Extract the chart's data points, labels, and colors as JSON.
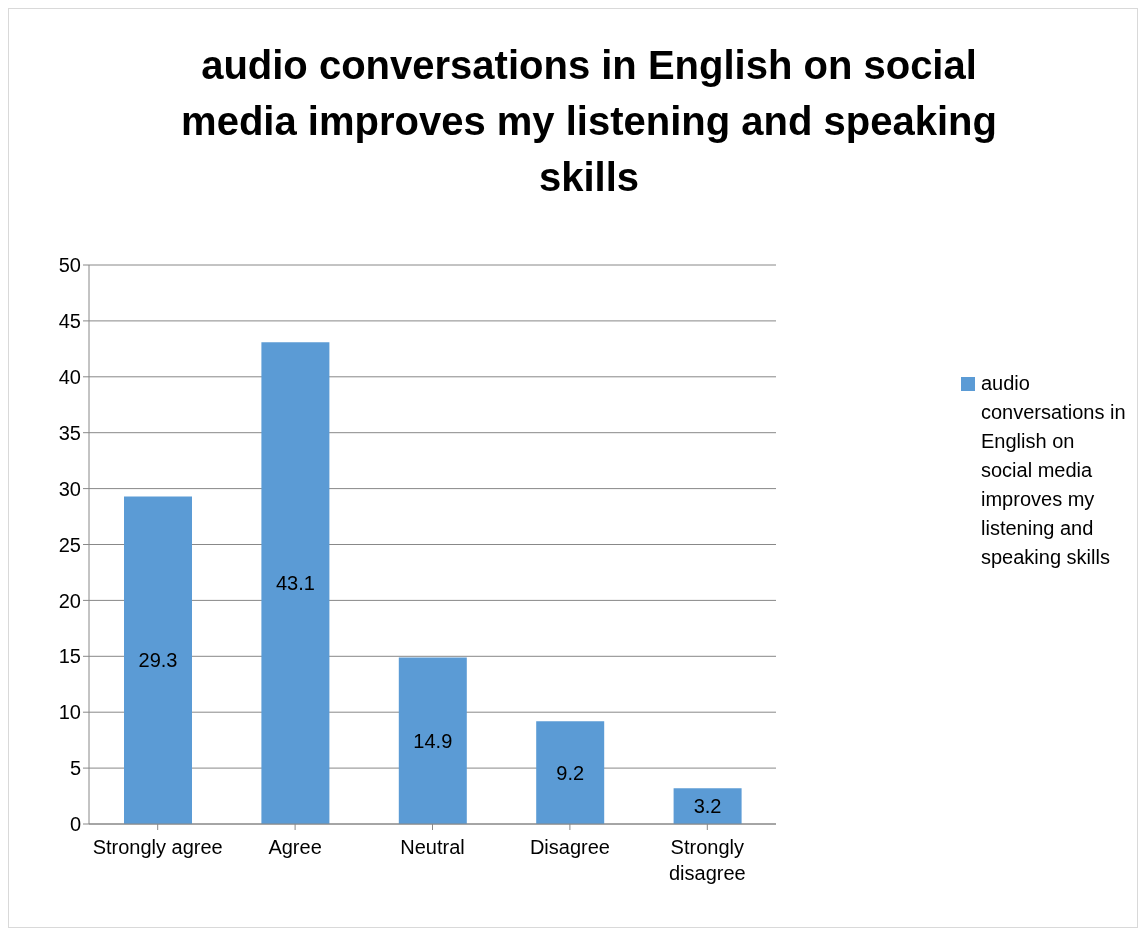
{
  "chart_data": {
    "type": "bar",
    "title": "audio conversations in English on social media improves my listening and speaking skills",
    "categories": [
      "Strongly agree",
      "Agree",
      "Neutral",
      "Disagree",
      "Strongly disagree"
    ],
    "series": [
      {
        "name": "audio conversations in English on social media improves my listening and speaking skills",
        "color": "#5b9bd5",
        "values": [
          29.3,
          43.1,
          14.9,
          9.2,
          3.2
        ]
      }
    ],
    "ylim": [
      0,
      50
    ],
    "yticks": [
      0,
      5,
      10,
      15,
      20,
      25,
      30,
      35,
      40,
      45,
      50
    ],
    "grid": "y",
    "legend": "right",
    "data_labels": true
  }
}
